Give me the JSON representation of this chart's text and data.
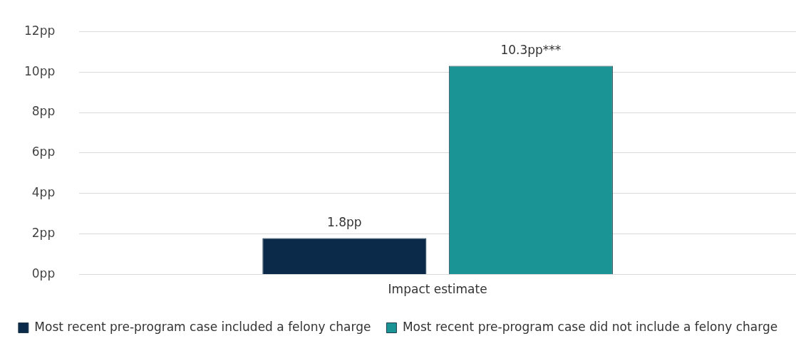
{
  "chart_data": {
    "type": "bar",
    "categories": [
      "Impact estimate"
    ],
    "series": [
      {
        "name": "Most recent pre-program case included a felony charge",
        "color": "#0b2a4a",
        "values": [
          1.8
        ],
        "value_labels": [
          "1.8pp"
        ]
      },
      {
        "name": "Most recent pre-program case did not include a felony charge",
        "color": "#1a9494",
        "values": [
          10.3
        ],
        "value_labels": [
          "10.3pp***"
        ]
      }
    ],
    "ylim": [
      0,
      12
    ],
    "yticks": [
      {
        "value": 0,
        "label": "0pp"
      },
      {
        "value": 2,
        "label": "2pp"
      },
      {
        "value": 4,
        "label": "4pp"
      },
      {
        "value": 6,
        "label": "6pp"
      },
      {
        "value": 8,
        "label": "8pp"
      },
      {
        "value": 10,
        "label": "10pp"
      },
      {
        "value": 12,
        "label": "12pp"
      }
    ],
    "grid": "y",
    "legend": "bottom"
  }
}
